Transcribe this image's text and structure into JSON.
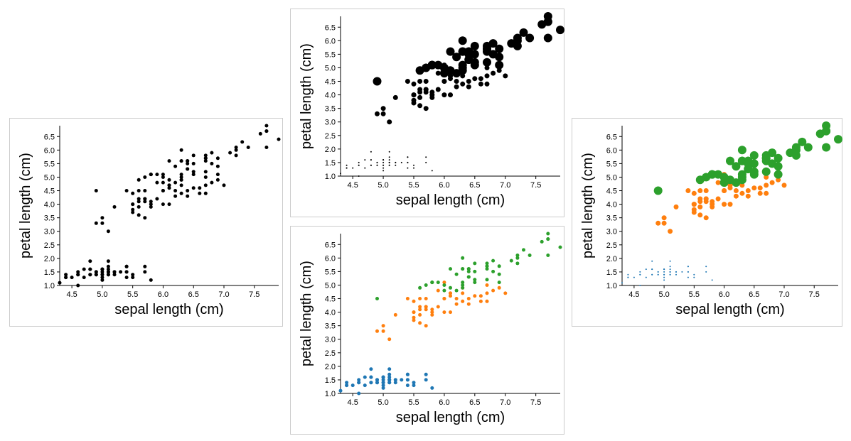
{
  "chart_data": [
    {
      "type": "scatter",
      "variant": "plain",
      "xlabel": "sepal length (cm)",
      "ylabel": "petal length (cm)",
      "xlim": [
        4.3,
        7.9
      ],
      "ylim": [
        1.0,
        6.9
      ],
      "xticks": [
        "4.5",
        "5.0",
        "5.5",
        "6.0",
        "6.5",
        "7.0",
        "7.5"
      ],
      "yticks": [
        "1.0",
        "1.5",
        "2.0",
        "2.5",
        "3.0",
        "3.5",
        "4.0",
        "4.5",
        "5.0",
        "5.5",
        "6.0",
        "6.5"
      ]
    },
    {
      "type": "scatter",
      "variant": "size_by_class",
      "xlabel": "sepal length (cm)",
      "ylabel": "petal length (cm)",
      "xlim": [
        4.3,
        7.9
      ],
      "ylim": [
        1.0,
        6.9
      ],
      "xticks": [
        "4.5",
        "5.0",
        "5.5",
        "6.0",
        "6.5",
        "7.0",
        "7.5"
      ],
      "yticks": [
        "1.0",
        "1.5",
        "2.0",
        "2.5",
        "3.0",
        "3.5",
        "4.0",
        "4.5",
        "5.0",
        "5.5",
        "6.0",
        "6.5"
      ]
    },
    {
      "type": "scatter",
      "variant": "color_by_class",
      "xlabel": "sepal length (cm)",
      "ylabel": "petal length (cm)",
      "xlim": [
        4.3,
        7.9
      ],
      "ylim": [
        1.0,
        6.9
      ],
      "xticks": [
        "4.5",
        "5.0",
        "5.5",
        "6.0",
        "6.5",
        "7.0",
        "7.5"
      ],
      "yticks": [
        "1.0",
        "1.5",
        "2.0",
        "2.5",
        "3.0",
        "3.5",
        "4.0",
        "4.5",
        "5.0",
        "5.5",
        "6.0",
        "6.5"
      ]
    },
    {
      "type": "scatter",
      "variant": "color_and_size_by_class",
      "xlabel": "sepal length (cm)",
      "ylabel": "petal length (cm)",
      "xlim": [
        4.3,
        7.9
      ],
      "ylim": [
        1.0,
        6.9
      ],
      "xticks": [
        "4.5",
        "5.0",
        "5.5",
        "6.0",
        "6.5",
        "7.0",
        "7.5"
      ],
      "yticks": [
        "1.0",
        "1.5",
        "2.0",
        "2.5",
        "3.0",
        "3.5",
        "4.0",
        "4.5",
        "5.0",
        "5.5",
        "6.0",
        "6.5"
      ]
    }
  ],
  "classes": [
    {
      "color": "#1f77b4",
      "size_level": 1
    },
    {
      "color": "#ff7f0e",
      "size_level": 2
    },
    {
      "color": "#2ca02c",
      "size_level": 3
    }
  ],
  "mono_color": "#000000",
  "points": [
    [
      5.1,
      1.4,
      0
    ],
    [
      4.9,
      1.4,
      0
    ],
    [
      4.7,
      1.3,
      0
    ],
    [
      4.6,
      1.5,
      0
    ],
    [
      5.0,
      1.4,
      0
    ],
    [
      5.4,
      1.7,
      0
    ],
    [
      4.6,
      1.4,
      0
    ],
    [
      5.0,
      1.5,
      0
    ],
    [
      4.4,
      1.4,
      0
    ],
    [
      4.9,
      1.5,
      0
    ],
    [
      5.4,
      1.5,
      0
    ],
    [
      4.8,
      1.6,
      0
    ],
    [
      4.8,
      1.4,
      0
    ],
    [
      4.3,
      1.1,
      0
    ],
    [
      5.8,
      1.2,
      0
    ],
    [
      5.7,
      1.5,
      0
    ],
    [
      5.4,
      1.3,
      0
    ],
    [
      5.1,
      1.4,
      0
    ],
    [
      5.7,
      1.7,
      0
    ],
    [
      5.1,
      1.5,
      0
    ],
    [
      5.4,
      1.7,
      0
    ],
    [
      5.1,
      1.5,
      0
    ],
    [
      4.6,
      1.0,
      0
    ],
    [
      5.1,
      1.7,
      0
    ],
    [
      4.8,
      1.9,
      0
    ],
    [
      5.0,
      1.6,
      0
    ],
    [
      5.0,
      1.6,
      0
    ],
    [
      5.2,
      1.5,
      0
    ],
    [
      5.2,
      1.4,
      0
    ],
    [
      4.7,
      1.6,
      0
    ],
    [
      4.8,
      1.6,
      0
    ],
    [
      5.4,
      1.5,
      0
    ],
    [
      5.2,
      1.5,
      0
    ],
    [
      5.5,
      1.4,
      0
    ],
    [
      4.9,
      1.5,
      0
    ],
    [
      5.0,
      1.2,
      0
    ],
    [
      5.5,
      1.3,
      0
    ],
    [
      4.9,
      1.4,
      0
    ],
    [
      4.4,
      1.3,
      0
    ],
    [
      5.1,
      1.5,
      0
    ],
    [
      5.0,
      1.3,
      0
    ],
    [
      4.5,
      1.3,
      0
    ],
    [
      4.4,
      1.3,
      0
    ],
    [
      5.0,
      1.6,
      0
    ],
    [
      5.1,
      1.9,
      0
    ],
    [
      4.8,
      1.4,
      0
    ],
    [
      5.1,
      1.6,
      0
    ],
    [
      4.6,
      1.4,
      0
    ],
    [
      5.3,
      1.5,
      0
    ],
    [
      5.0,
      1.4,
      0
    ],
    [
      7.0,
      4.7,
      1
    ],
    [
      6.4,
      4.5,
      1
    ],
    [
      6.9,
      4.9,
      1
    ],
    [
      5.5,
      4.0,
      1
    ],
    [
      6.5,
      4.6,
      1
    ],
    [
      5.7,
      4.5,
      1
    ],
    [
      6.3,
      4.7,
      1
    ],
    [
      4.9,
      3.3,
      1
    ],
    [
      6.6,
      4.6,
      1
    ],
    [
      5.2,
      3.9,
      1
    ],
    [
      5.0,
      3.5,
      1
    ],
    [
      5.9,
      4.2,
      1
    ],
    [
      6.0,
      4.0,
      1
    ],
    [
      6.1,
      4.7,
      1
    ],
    [
      5.6,
      3.6,
      1
    ],
    [
      6.7,
      4.4,
      1
    ],
    [
      5.6,
      4.5,
      1
    ],
    [
      5.8,
      4.1,
      1
    ],
    [
      6.2,
      4.5,
      1
    ],
    [
      5.6,
      3.9,
      1
    ],
    [
      5.9,
      4.8,
      1
    ],
    [
      6.1,
      4.0,
      1
    ],
    [
      6.3,
      4.9,
      1
    ],
    [
      6.1,
      4.7,
      1
    ],
    [
      6.4,
      4.3,
      1
    ],
    [
      6.6,
      4.4,
      1
    ],
    [
      6.8,
      4.8,
      1
    ],
    [
      6.7,
      5.0,
      1
    ],
    [
      6.0,
      4.5,
      1
    ],
    [
      5.7,
      3.5,
      1
    ],
    [
      5.5,
      3.8,
      1
    ],
    [
      5.5,
      3.7,
      1
    ],
    [
      5.8,
      3.9,
      1
    ],
    [
      6.0,
      5.1,
      1
    ],
    [
      5.4,
      4.5,
      1
    ],
    [
      6.0,
      4.5,
      1
    ],
    [
      6.7,
      4.7,
      1
    ],
    [
      6.3,
      4.4,
      1
    ],
    [
      5.6,
      4.1,
      1
    ],
    [
      5.5,
      4.0,
      1
    ],
    [
      5.5,
      4.4,
      1
    ],
    [
      6.1,
      4.6,
      1
    ],
    [
      5.8,
      4.0,
      1
    ],
    [
      5.0,
      3.3,
      1
    ],
    [
      5.6,
      4.2,
      1
    ],
    [
      5.7,
      4.2,
      1
    ],
    [
      5.7,
      4.2,
      1
    ],
    [
      6.2,
      4.3,
      1
    ],
    [
      5.1,
      3.0,
      1
    ],
    [
      5.7,
      4.1,
      1
    ],
    [
      6.3,
      6.0,
      2
    ],
    [
      5.8,
      5.1,
      2
    ],
    [
      7.1,
      5.9,
      2
    ],
    [
      6.3,
      5.6,
      2
    ],
    [
      6.5,
      5.8,
      2
    ],
    [
      7.6,
      6.6,
      2
    ],
    [
      4.9,
      4.5,
      2
    ],
    [
      7.3,
      6.3,
      2
    ],
    [
      6.7,
      5.8,
      2
    ],
    [
      7.2,
      6.1,
      2
    ],
    [
      6.5,
      5.1,
      2
    ],
    [
      6.4,
      5.3,
      2
    ],
    [
      6.8,
      5.5,
      2
    ],
    [
      5.7,
      5.0,
      2
    ],
    [
      5.8,
      5.1,
      2
    ],
    [
      6.4,
      5.3,
      2
    ],
    [
      6.5,
      5.5,
      2
    ],
    [
      7.7,
      6.7,
      2
    ],
    [
      7.7,
      6.9,
      2
    ],
    [
      6.0,
      5.0,
      2
    ],
    [
      6.9,
      5.7,
      2
    ],
    [
      5.6,
      4.9,
      2
    ],
    [
      7.7,
      6.7,
      2
    ],
    [
      6.3,
      4.9,
      2
    ],
    [
      6.7,
      5.7,
      2
    ],
    [
      7.2,
      6.0,
      2
    ],
    [
      6.2,
      4.8,
      2
    ],
    [
      6.1,
      4.9,
      2
    ],
    [
      6.4,
      5.6,
      2
    ],
    [
      7.2,
      5.8,
      2
    ],
    [
      7.4,
      6.1,
      2
    ],
    [
      7.9,
      6.4,
      2
    ],
    [
      6.4,
      5.6,
      2
    ],
    [
      6.3,
      5.1,
      2
    ],
    [
      6.1,
      5.6,
      2
    ],
    [
      7.7,
      6.1,
      2
    ],
    [
      6.3,
      5.6,
      2
    ],
    [
      6.4,
      5.5,
      2
    ],
    [
      6.0,
      4.8,
      2
    ],
    [
      6.9,
      5.4,
      2
    ],
    [
      6.7,
      5.6,
      2
    ],
    [
      6.9,
      5.1,
      2
    ],
    [
      5.8,
      5.1,
      2
    ],
    [
      6.8,
      5.9,
      2
    ],
    [
      6.7,
      5.7,
      2
    ],
    [
      6.7,
      5.2,
      2
    ],
    [
      6.3,
      5.0,
      2
    ],
    [
      6.5,
      5.2,
      2
    ],
    [
      6.2,
      5.4,
      2
    ],
    [
      5.9,
      5.1,
      2
    ]
  ]
}
